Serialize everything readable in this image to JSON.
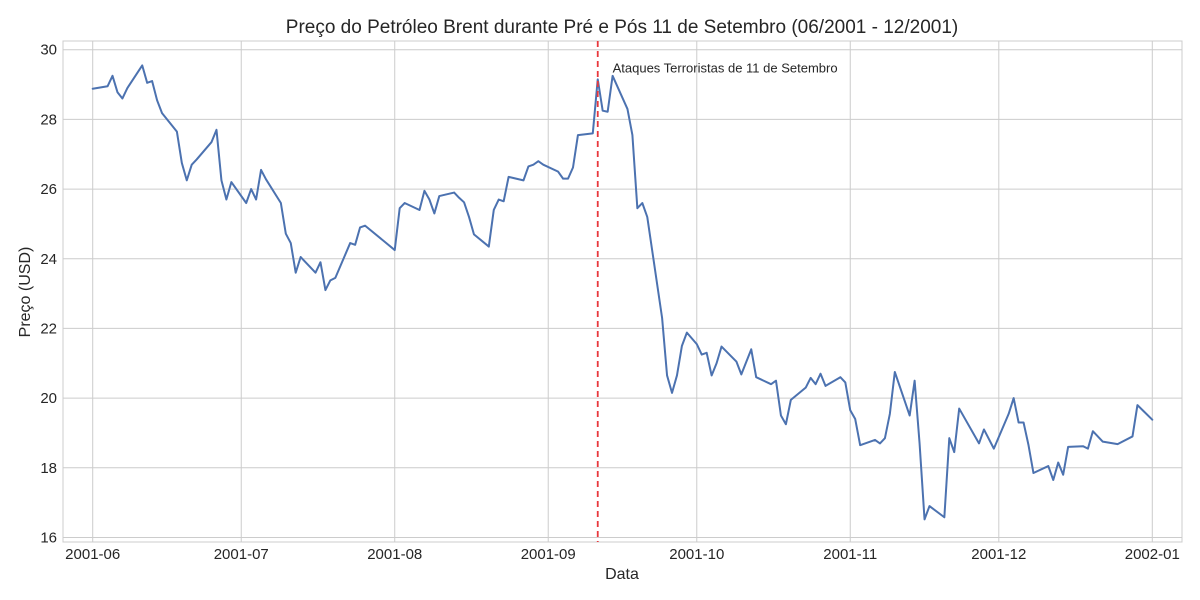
{
  "chart_data": {
    "type": "line",
    "title": "Preço do Petróleo Brent durante Pré e Pós 11 de Setembro (06/2001 - 12/2001)",
    "xlabel": "Data",
    "ylabel": "Preço (USD)",
    "xlim": [
      "2001-05-26",
      "2002-01-07"
    ],
    "ylim": [
      15.87,
      30.25
    ],
    "grid": true,
    "x_ticks": [
      "2001-06-01",
      "2001-07-01",
      "2001-08-01",
      "2001-09-01",
      "2001-10-01",
      "2001-11-01",
      "2001-12-01",
      "2002-01-01"
    ],
    "x_tick_labels": [
      "2001-06",
      "2001-07",
      "2001-08",
      "2001-09",
      "2001-10",
      "2001-11",
      "2001-12",
      "2002-01"
    ],
    "y_ticks": [
      16,
      18,
      20,
      22,
      24,
      26,
      28,
      30
    ],
    "y_tick_labels": [
      "16",
      "18",
      "20",
      "22",
      "24",
      "26",
      "28",
      "30"
    ],
    "series": [
      {
        "color": "#4c72b0",
        "points": [
          [
            "2001-06-01",
            28.88
          ],
          [
            "2001-06-04",
            28.95
          ],
          [
            "2001-06-05",
            29.25
          ],
          [
            "2001-06-06",
            28.78
          ],
          [
            "2001-06-07",
            28.6
          ],
          [
            "2001-06-08",
            28.9
          ],
          [
            "2001-06-11",
            29.55
          ],
          [
            "2001-06-12",
            29.05
          ],
          [
            "2001-06-13",
            29.1
          ],
          [
            "2001-06-14",
            28.55
          ],
          [
            "2001-06-15",
            28.18
          ],
          [
            "2001-06-18",
            27.65
          ],
          [
            "2001-06-19",
            26.75
          ],
          [
            "2001-06-20",
            26.25
          ],
          [
            "2001-06-21",
            26.7
          ],
          [
            "2001-06-22",
            26.85
          ],
          [
            "2001-06-25",
            27.35
          ],
          [
            "2001-06-26",
            27.7
          ],
          [
            "2001-06-27",
            26.25
          ],
          [
            "2001-06-28",
            25.7
          ],
          [
            "2001-06-29",
            26.2
          ],
          [
            "2001-07-02",
            25.6
          ],
          [
            "2001-07-03",
            26.0
          ],
          [
            "2001-07-04",
            25.7
          ],
          [
            "2001-07-05",
            26.55
          ],
          [
            "2001-07-06",
            26.28
          ],
          [
            "2001-07-09",
            25.6
          ],
          [
            "2001-07-10",
            24.72
          ],
          [
            "2001-07-11",
            24.45
          ],
          [
            "2001-07-12",
            23.6
          ],
          [
            "2001-07-13",
            24.05
          ],
          [
            "2001-07-16",
            23.6
          ],
          [
            "2001-07-17",
            23.9
          ],
          [
            "2001-07-18",
            23.1
          ],
          [
            "2001-07-19",
            23.38
          ],
          [
            "2001-07-20",
            23.45
          ],
          [
            "2001-07-23",
            24.45
          ],
          [
            "2001-07-24",
            24.4
          ],
          [
            "2001-07-25",
            24.9
          ],
          [
            "2001-07-26",
            24.95
          ],
          [
            "2001-08-01",
            24.25
          ],
          [
            "2001-08-02",
            25.45
          ],
          [
            "2001-08-03",
            25.6
          ],
          [
            "2001-08-06",
            25.4
          ],
          [
            "2001-08-07",
            25.95
          ],
          [
            "2001-08-08",
            25.7
          ],
          [
            "2001-08-09",
            25.3
          ],
          [
            "2001-08-10",
            25.8
          ],
          [
            "2001-08-13",
            25.9
          ],
          [
            "2001-08-14",
            25.75
          ],
          [
            "2001-08-15",
            25.62
          ],
          [
            "2001-08-16",
            25.2
          ],
          [
            "2001-08-17",
            24.7
          ],
          [
            "2001-08-20",
            24.35
          ],
          [
            "2001-08-21",
            25.4
          ],
          [
            "2001-08-22",
            25.7
          ],
          [
            "2001-08-23",
            25.65
          ],
          [
            "2001-08-24",
            26.35
          ],
          [
            "2001-08-27",
            26.25
          ],
          [
            "2001-08-28",
            26.65
          ],
          [
            "2001-08-29",
            26.7
          ],
          [
            "2001-08-30",
            26.8
          ],
          [
            "2001-08-31",
            26.7
          ],
          [
            "2001-09-03",
            26.5
          ],
          [
            "2001-09-04",
            26.3
          ],
          [
            "2001-09-05",
            26.3
          ],
          [
            "2001-09-06",
            26.62
          ],
          [
            "2001-09-07",
            27.55
          ],
          [
            "2001-09-10",
            27.6
          ],
          [
            "2001-09-11",
            29.15
          ],
          [
            "2001-09-12",
            28.25
          ],
          [
            "2001-09-13",
            28.22
          ],
          [
            "2001-09-14",
            29.25
          ],
          [
            "2001-09-17",
            28.3
          ],
          [
            "2001-09-18",
            27.55
          ],
          [
            "2001-09-19",
            25.45
          ],
          [
            "2001-09-20",
            25.6
          ],
          [
            "2001-09-21",
            25.2
          ],
          [
            "2001-09-24",
            22.3
          ],
          [
            "2001-09-25",
            20.65
          ],
          [
            "2001-09-26",
            20.15
          ],
          [
            "2001-09-27",
            20.65
          ],
          [
            "2001-09-28",
            21.5
          ],
          [
            "2001-09-29",
            21.88
          ],
          [
            "2001-10-01",
            21.55
          ],
          [
            "2001-10-02",
            21.25
          ],
          [
            "2001-10-03",
            21.3
          ],
          [
            "2001-10-04",
            20.65
          ],
          [
            "2001-10-05",
            21.0
          ],
          [
            "2001-10-06",
            21.48
          ],
          [
            "2001-10-09",
            21.05
          ],
          [
            "2001-10-10",
            20.68
          ],
          [
            "2001-10-12",
            21.4
          ],
          [
            "2001-10-13",
            20.6
          ],
          [
            "2001-10-16",
            20.4
          ],
          [
            "2001-10-17",
            20.5
          ],
          [
            "2001-10-18",
            19.5
          ],
          [
            "2001-10-19",
            19.25
          ],
          [
            "2001-10-20",
            19.95
          ],
          [
            "2001-10-23",
            20.3
          ],
          [
            "2001-10-24",
            20.58
          ],
          [
            "2001-10-25",
            20.4
          ],
          [
            "2001-10-26",
            20.7
          ],
          [
            "2001-10-27",
            20.35
          ],
          [
            "2001-10-30",
            20.6
          ],
          [
            "2001-10-31",
            20.45
          ],
          [
            "2001-11-01",
            19.65
          ],
          [
            "2001-11-02",
            19.4
          ],
          [
            "2001-11-03",
            18.65
          ],
          [
            "2001-11-06",
            18.8
          ],
          [
            "2001-11-07",
            18.7
          ],
          [
            "2001-11-08",
            18.85
          ],
          [
            "2001-11-09",
            19.55
          ],
          [
            "2001-11-10",
            20.75
          ],
          [
            "2001-11-13",
            19.5
          ],
          [
            "2001-11-14",
            20.5
          ],
          [
            "2001-11-15",
            18.7
          ],
          [
            "2001-11-16",
            16.52
          ],
          [
            "2001-11-17",
            16.9
          ],
          [
            "2001-11-20",
            16.58
          ],
          [
            "2001-11-21",
            18.85
          ],
          [
            "2001-11-22",
            18.45
          ],
          [
            "2001-11-23",
            19.7
          ],
          [
            "2001-11-27",
            18.7
          ],
          [
            "2001-11-28",
            19.1
          ],
          [
            "2001-11-30",
            18.55
          ],
          [
            "2001-12-03",
            19.55
          ],
          [
            "2001-12-04",
            20.0
          ],
          [
            "2001-12-05",
            19.3
          ],
          [
            "2001-12-06",
            19.3
          ],
          [
            "2001-12-07",
            18.65
          ],
          [
            "2001-12-08",
            17.85
          ],
          [
            "2001-12-11",
            18.05
          ],
          [
            "2001-12-12",
            17.65
          ],
          [
            "2001-12-13",
            18.15
          ],
          [
            "2001-12-14",
            17.8
          ],
          [
            "2001-12-15",
            18.6
          ],
          [
            "2001-12-18",
            18.62
          ],
          [
            "2001-12-19",
            18.55
          ],
          [
            "2001-12-20",
            19.05
          ],
          [
            "2001-12-22",
            18.75
          ],
          [
            "2001-12-25",
            18.68
          ],
          [
            "2001-12-28",
            18.9
          ],
          [
            "2001-12-29",
            19.8
          ],
          [
            "2002-01-01",
            19.38
          ]
        ]
      }
    ],
    "vline": {
      "x": "2001-09-11",
      "color": "#e8383d",
      "style": "dashed"
    },
    "annotation": {
      "text": "Ataques Terroristas de 11 de Setembro",
      "x": "2001-09-14",
      "y": 29.2
    }
  }
}
